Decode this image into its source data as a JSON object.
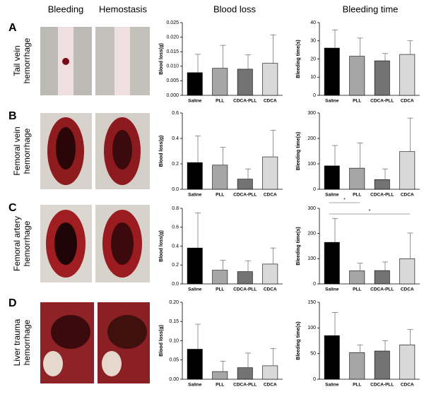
{
  "figure": {
    "column_headers": [
      "Bleeding",
      "Hemostasis",
      "Blood loss",
      "Bleeding time"
    ],
    "rows": [
      {
        "letter": "A",
        "label": [
          "Tail vein",
          "hemorrhage"
        ]
      },
      {
        "letter": "B",
        "label": [
          "Femoral vein",
          "hemorrhage"
        ]
      },
      {
        "letter": "C",
        "label": [
          "Femoral artery",
          "hemorrhage"
        ]
      },
      {
        "letter": "D",
        "label": [
          "Liver trauma",
          "hemorrhage"
        ]
      }
    ]
  },
  "chart_data": [
    {
      "type": "bar",
      "ylabel": "Blood loss(g)",
      "categories": [
        "Saline",
        "PLL",
        "CDCA-PLL",
        "CDCA"
      ],
      "values": [
        0.0078,
        0.0093,
        0.009,
        0.011
      ],
      "errors": [
        0.0063,
        0.0079,
        0.0049,
        0.0098
      ],
      "colors": [
        "#000000",
        "#a6a6a6",
        "#737373",
        "#d9d9d9"
      ],
      "ylim": [
        0,
        0.025
      ],
      "yticks": [
        {
          "value": 0,
          "label": "0.000"
        },
        0.005,
        {
          "value": 0.01,
          "label": "0.010"
        },
        0.015,
        {
          "value": 0.02,
          "label": "0.020"
        },
        0.025
      ]
    },
    {
      "type": "bar",
      "ylabel": "Bleeding time(s)",
      "categories": [
        "Saline",
        "PLL",
        "CDCA-PLL",
        "CDCA"
      ],
      "values": [
        26,
        21.5,
        19,
        22.5
      ],
      "errors": [
        10,
        10,
        4,
        7.5
      ],
      "colors": [
        "#000000",
        "#a6a6a6",
        "#737373",
        "#d9d9d9"
      ],
      "ylim": [
        0,
        40
      ],
      "yticks": [
        0,
        10,
        20,
        30,
        40
      ]
    },
    {
      "type": "bar",
      "ylabel": "Blood loss(g)",
      "categories": [
        "Saline",
        "PLL",
        "CDCA-PLL",
        "CDCA"
      ],
      "values": [
        0.21,
        0.19,
        0.08,
        0.255
      ],
      "errors": [
        0.21,
        0.14,
        0.08,
        0.21
      ],
      "colors": [
        "#000000",
        "#a6a6a6",
        "#737373",
        "#d9d9d9"
      ],
      "ylim": [
        0,
        0.6
      ],
      "yticks": [
        {
          "value": 0,
          "label": "0.0"
        },
        0.2,
        0.4,
        0.6
      ]
    },
    {
      "type": "bar",
      "ylabel": "Bleeding time(s)",
      "categories": [
        "Saline",
        "PLL",
        "CDCA-PLL",
        "CDCA"
      ],
      "values": [
        92,
        83,
        38,
        148
      ],
      "errors": [
        80,
        99,
        42,
        132
      ],
      "colors": [
        "#000000",
        "#a6a6a6",
        "#737373",
        "#d9d9d9"
      ],
      "ylim": [
        0,
        300
      ],
      "yticks": [
        0,
        100,
        200,
        300
      ]
    },
    {
      "type": "bar",
      "ylabel": "Blood loss(g)",
      "categories": [
        "Saline",
        "PLL",
        "CDCA-PLL",
        "CDCA"
      ],
      "values": [
        0.38,
        0.145,
        0.13,
        0.21
      ],
      "errors": [
        0.37,
        0.105,
        0.115,
        0.17
      ],
      "colors": [
        "#000000",
        "#a6a6a6",
        "#737373",
        "#d9d9d9"
      ],
      "ylim": [
        0,
        0.8
      ],
      "yticks": [
        {
          "value": 0,
          "label": "0.0"
        },
        0.2,
        0.4,
        0.6,
        0.8
      ]
    },
    {
      "type": "bar",
      "ylabel": "Bleeding time(s)",
      "categories": [
        "Saline",
        "PLL",
        "CDCA-PLL",
        "CDCA"
      ],
      "values": [
        165,
        52,
        53,
        100
      ],
      "errors": [
        95,
        30,
        34,
        102
      ],
      "colors": [
        "#000000",
        "#a6a6a6",
        "#737373",
        "#d9d9d9"
      ],
      "ylim": [
        0,
        300
      ],
      "yticks": [
        0,
        100,
        200,
        300
      ],
      "annotations": [
        {
          "text": "*",
          "between": [
            "Saline",
            "PLL"
          ]
        },
        {
          "text": "*",
          "between": [
            "Saline",
            "CDCA"
          ]
        }
      ]
    },
    {
      "type": "bar",
      "ylabel": "Blood loss(g)",
      "categories": [
        "Saline",
        "PLL",
        "CDCA-PLL",
        "CDCA"
      ],
      "values": [
        0.078,
        0.02,
        0.03,
        0.035
      ],
      "errors": [
        0.065,
        0.027,
        0.038,
        0.045
      ],
      "colors": [
        "#000000",
        "#a6a6a6",
        "#737373",
        "#d9d9d9"
      ],
      "ylim": [
        0,
        0.2
      ],
      "yticks": [
        {
          "value": 0,
          "label": "0.00"
        },
        0.05,
        {
          "value": 0.1,
          "label": "0.10"
        },
        0.15,
        {
          "value": 0.2,
          "label": "0.20"
        }
      ]
    },
    {
      "type": "bar",
      "ylabel": "Bleeding time(s)",
      "categories": [
        "Saline",
        "PLL",
        "CDCA-PLL",
        "CDCA"
      ],
      "values": [
        85,
        52,
        55,
        67
      ],
      "errors": [
        45,
        15,
        20,
        30
      ],
      "colors": [
        "#000000",
        "#a6a6a6",
        "#737373",
        "#d9d9d9"
      ],
      "ylim": [
        0,
        150
      ],
      "yticks": [
        0,
        50,
        100,
        150
      ]
    }
  ]
}
